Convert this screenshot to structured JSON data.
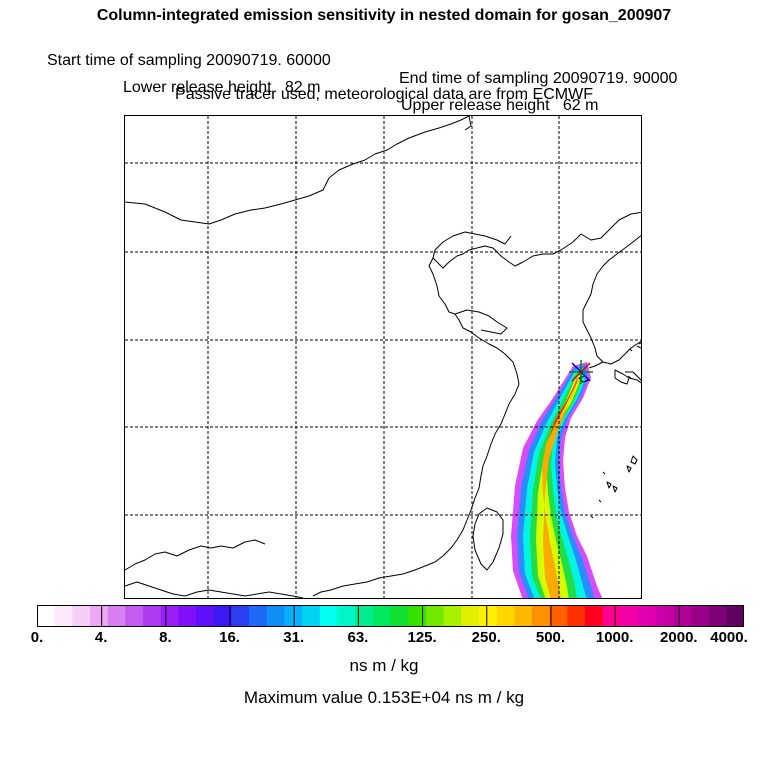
{
  "header": {
    "title": "Column-integrated emission sensitivity in nested domain for gosan_200907",
    "start_label": "Start time of sampling 20090719. 60000",
    "end_label": "End time of sampling 20090719. 90000",
    "lower_label": "Lower release height   82 m",
    "upper_label": "Upper release height   62 m",
    "tracer_note": "Passive tracer used, meteorological data are from ECMWF"
  },
  "map": {
    "description_icon": "release-site-star-icon",
    "plume_colors": {
      "outer": "#cc44ff",
      "blue": "#2288ff",
      "cyan": "#00ffe0",
      "green": "#33dd33",
      "yellow": "#ccff00",
      "orange": "#ffaa00",
      "red": "#ff3300"
    }
  },
  "colorbar": {
    "colors": [
      "#ffffff",
      "#fbe8fb",
      "#f5cdf5",
      "#eda8f4",
      "#d77ef0",
      "#c35cee",
      "#ad3bf0",
      "#9a1ef6",
      "#7f10f8",
      "#5f10f8",
      "#3c18f4",
      "#2a40f2",
      "#1c6af4",
      "#0f8ef6",
      "#07b0f8",
      "#00d4f4",
      "#00fff0",
      "#00f5c8",
      "#00ee90",
      "#00e860",
      "#10e030",
      "#38e000",
      "#70e800",
      "#a8f000",
      "#e0f000",
      "#fff000",
      "#ffd800",
      "#ffb800",
      "#ff9000",
      "#ff6000",
      "#ff3000",
      "#ff0020",
      "#ff0090",
      "#f400a8",
      "#e000b0",
      "#c800a8",
      "#b00098",
      "#980088",
      "#800078",
      "#600060"
    ],
    "tick_labels": [
      "0.",
      "4.",
      "8.",
      "16.",
      "31.",
      "63.",
      "125.",
      "250.",
      "500.",
      "1000.",
      "2000.",
      "4000."
    ],
    "units": "ns m / kg",
    "max_value_text": "Maximum value  0.153E+04 ns m / kg"
  }
}
